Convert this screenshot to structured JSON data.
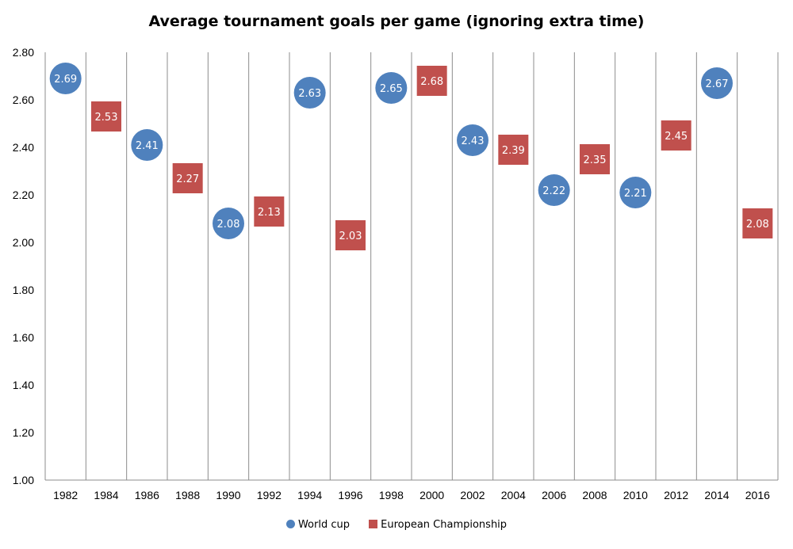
{
  "chart_data": {
    "type": "scatter",
    "title": "Average tournament goals per game (ignoring extra time)",
    "xlabel": "",
    "ylabel": "",
    "categories": [
      "1982",
      "1984",
      "1986",
      "1988",
      "1990",
      "1992",
      "1994",
      "1996",
      "1998",
      "2000",
      "2002",
      "2004",
      "2006",
      "2008",
      "2010",
      "2012",
      "2014",
      "2016"
    ],
    "ylim": [
      1.0,
      2.8
    ],
    "yticks": [
      "1.00",
      "1.20",
      "1.40",
      "1.60",
      "1.80",
      "2.00",
      "2.20",
      "2.40",
      "2.60",
      "2.80"
    ],
    "grid": "vertical",
    "legend_position": "bottom",
    "series": [
      {
        "name": "World cup",
        "marker": "circle",
        "color": "#4f81bd",
        "points": [
          {
            "x": "1982",
            "y": 2.69
          },
          {
            "x": "1986",
            "y": 2.41
          },
          {
            "x": "1990",
            "y": 2.08
          },
          {
            "x": "1994",
            "y": 2.63
          },
          {
            "x": "1998",
            "y": 2.65
          },
          {
            "x": "2002",
            "y": 2.43
          },
          {
            "x": "2006",
            "y": 2.22
          },
          {
            "x": "2010",
            "y": 2.21
          },
          {
            "x": "2014",
            "y": 2.67
          }
        ]
      },
      {
        "name": "European Championship",
        "marker": "square",
        "color": "#c0504d",
        "points": [
          {
            "x": "1984",
            "y": 2.53
          },
          {
            "x": "1988",
            "y": 2.27
          },
          {
            "x": "1992",
            "y": 2.13
          },
          {
            "x": "1996",
            "y": 2.03
          },
          {
            "x": "2000",
            "y": 2.68
          },
          {
            "x": "2004",
            "y": 2.39
          },
          {
            "x": "2008",
            "y": 2.35
          },
          {
            "x": "2012",
            "y": 2.45
          },
          {
            "x": "2016",
            "y": 2.08
          }
        ]
      }
    ]
  }
}
